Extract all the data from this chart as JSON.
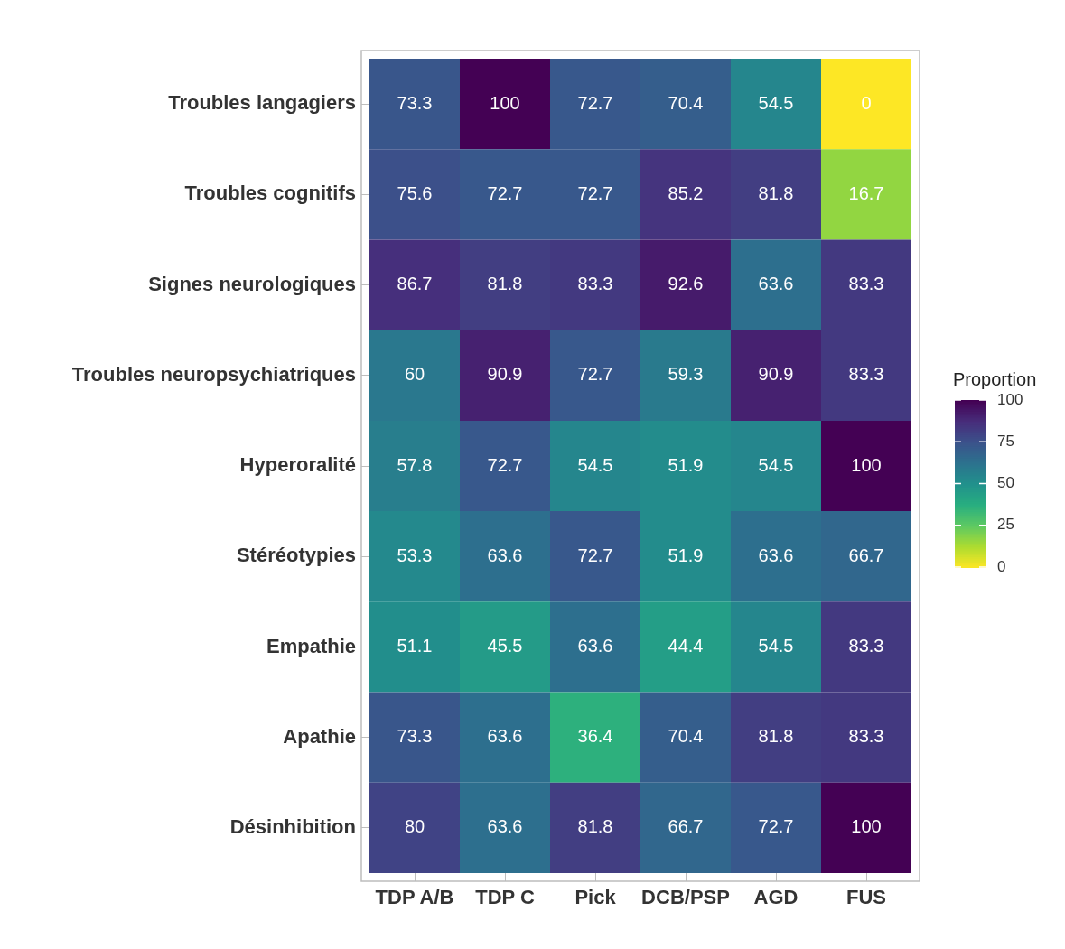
{
  "chart_data": {
    "type": "heatmap",
    "legend_title": "Proportion",
    "categories": [
      "TDP A/B",
      "TDP C",
      "Pick",
      "DCB/PSP",
      "AGD",
      "FUS"
    ],
    "y_categories": [
      "Troubles langagiers",
      "Troubles cognitifs",
      "Signes neurologiques",
      "Troubles neuropsychiatriques",
      "Hyperoralité",
      "Stéréotypies",
      "Empathie",
      "Apathie",
      "Désinhibition"
    ],
    "cells": [
      [
        73.3,
        100,
        72.7,
        70.4,
        54.5,
        0
      ],
      [
        75.6,
        72.7,
        72.7,
        85.2,
        81.8,
        16.7
      ],
      [
        86.7,
        81.8,
        83.3,
        92.6,
        63.6,
        83.3
      ],
      [
        60,
        90.9,
        72.7,
        59.3,
        90.9,
        83.3
      ],
      [
        57.8,
        72.7,
        54.5,
        51.9,
        54.5,
        100
      ],
      [
        53.3,
        63.6,
        72.7,
        51.9,
        63.6,
        66.7
      ],
      [
        51.1,
        45.5,
        63.6,
        44.4,
        54.5,
        83.3
      ],
      [
        73.3,
        63.6,
        36.4,
        70.4,
        81.8,
        83.3
      ],
      [
        80,
        63.6,
        81.8,
        66.7,
        72.7,
        100
      ]
    ],
    "clim": [
      0,
      100
    ],
    "cticks": [
      0,
      25,
      50,
      75,
      100
    ],
    "data_labels": true
  }
}
